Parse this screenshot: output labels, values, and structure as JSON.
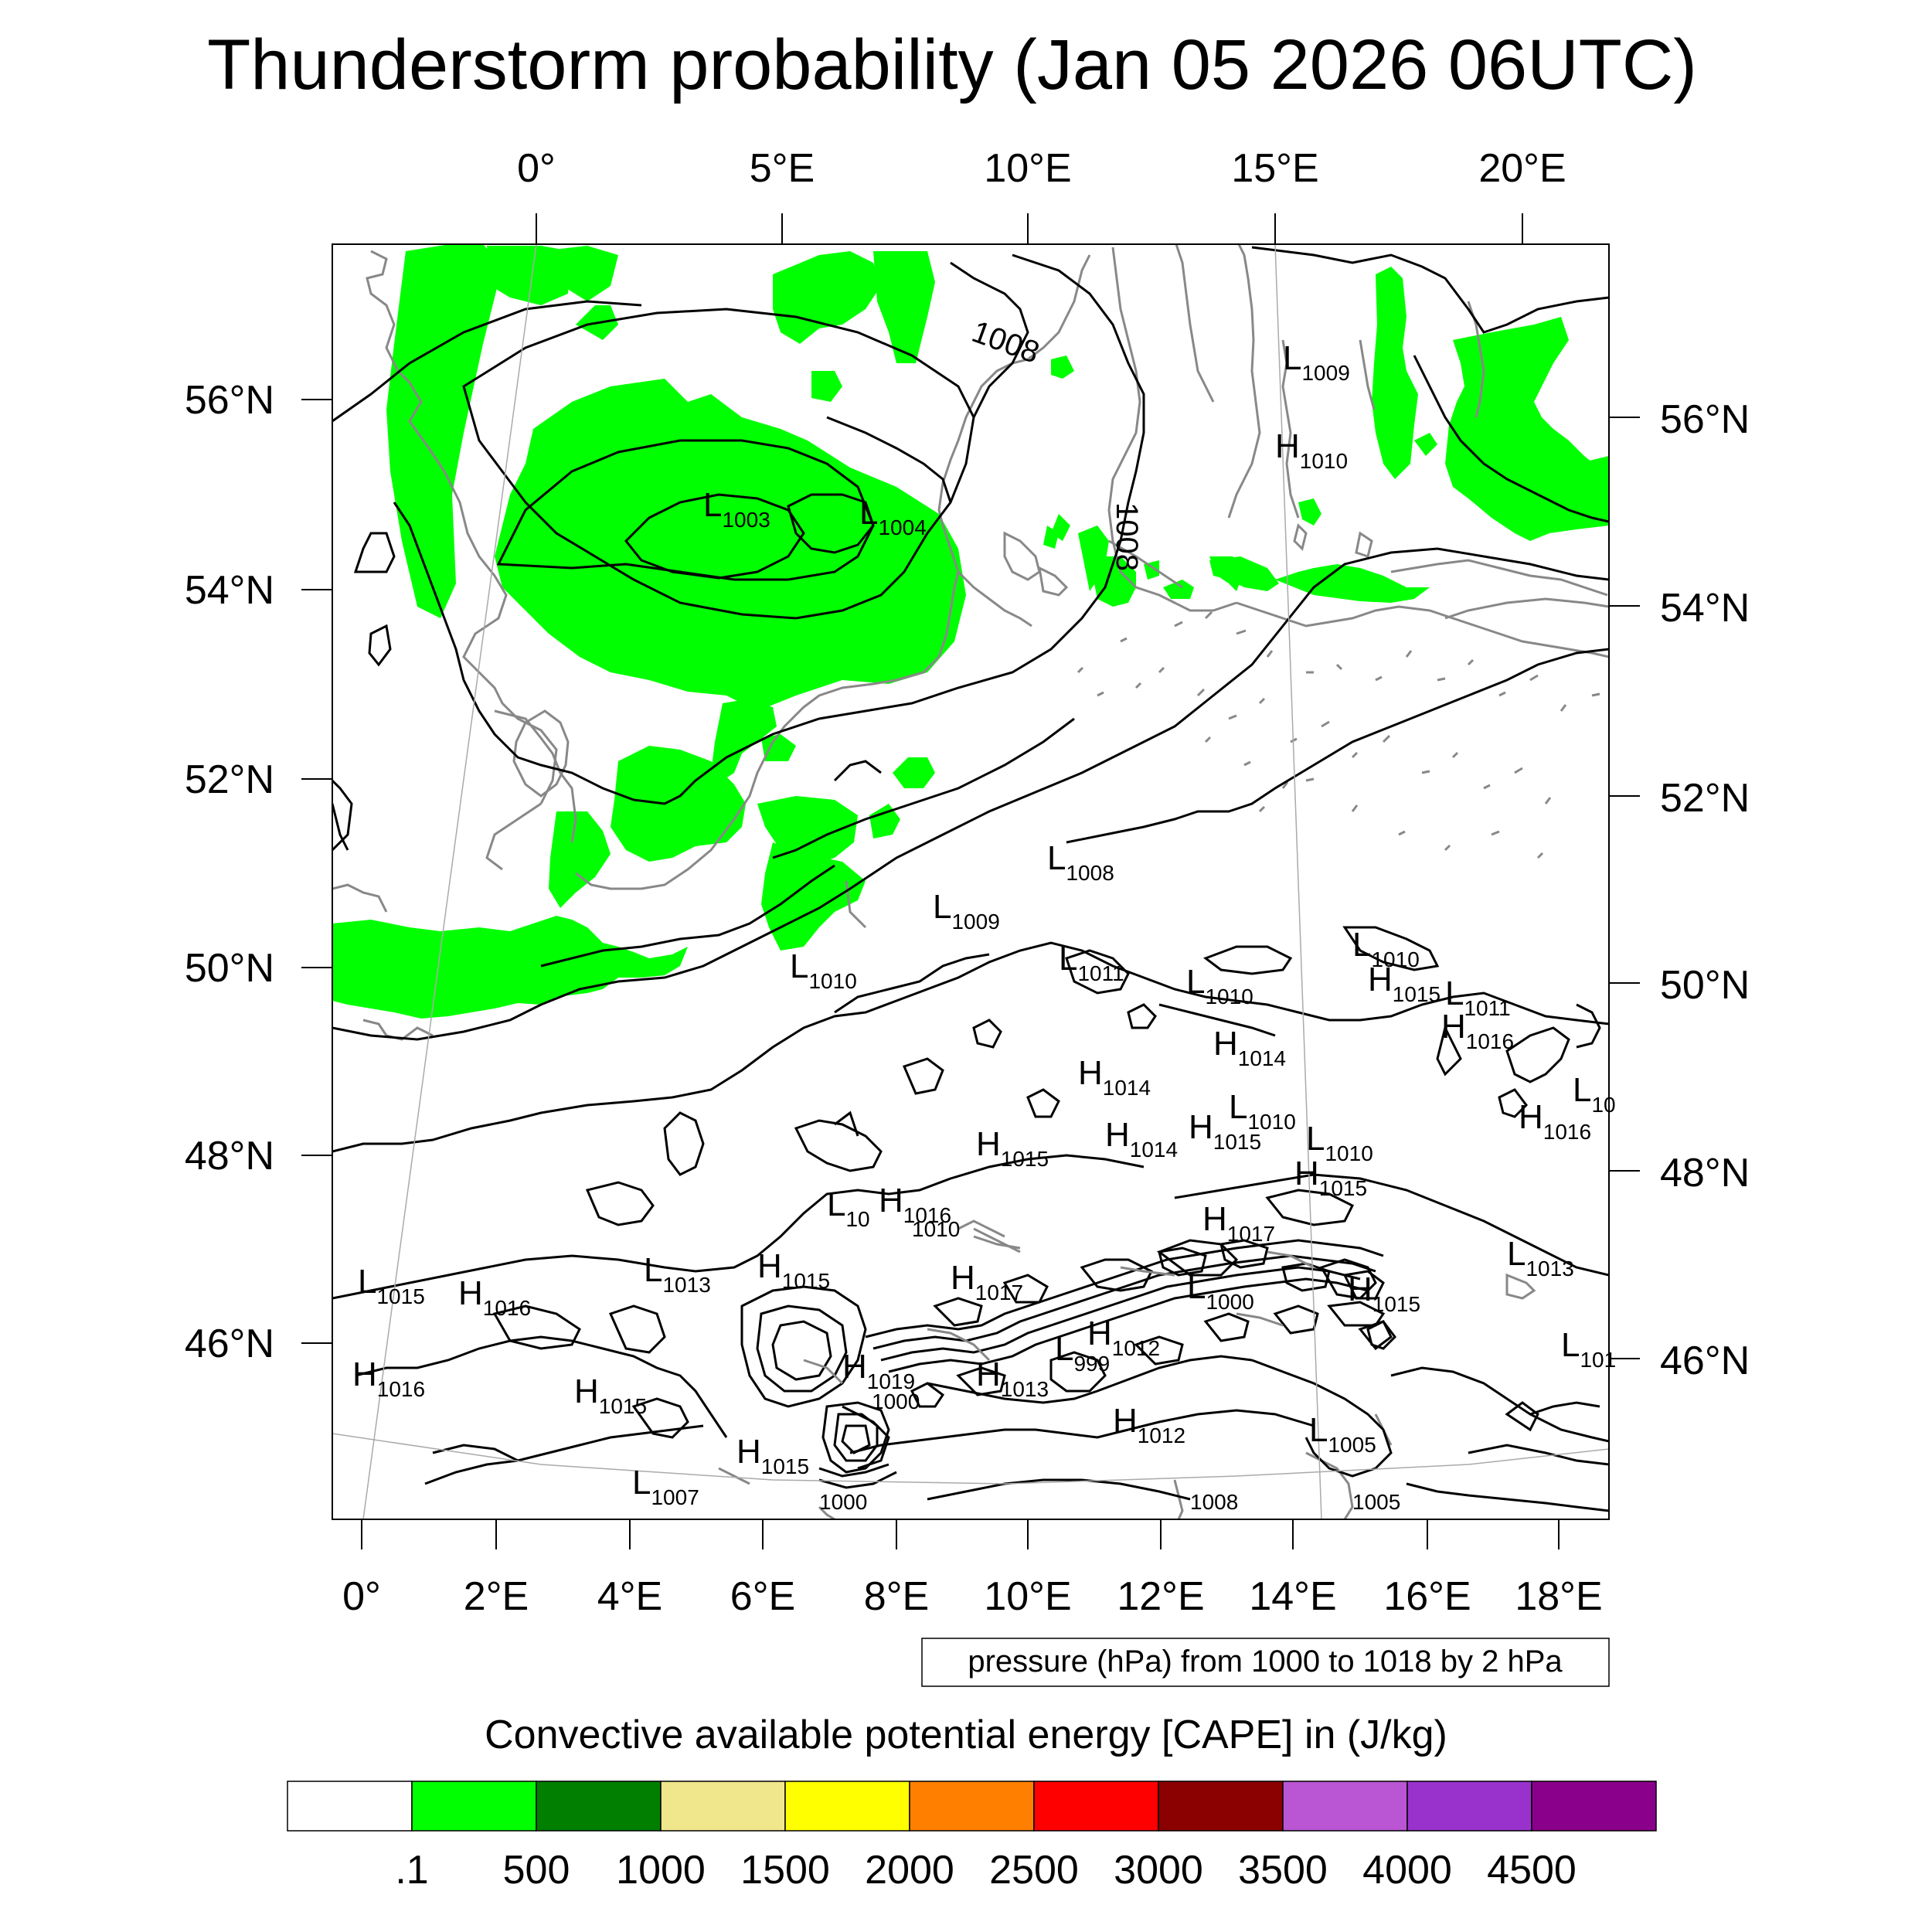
{
  "title": "Thunderstorm probability (Jan 05 2026 06UTC)",
  "top_lon_labels": [
    "0°",
    "5°E",
    "10°E",
    "15°E",
    "20°E"
  ],
  "bottom_lon_labels": [
    "0°",
    "2°E",
    "4°E",
    "6°E",
    "8°E",
    "10°E",
    "12°E",
    "14°E",
    "16°E",
    "18°E"
  ],
  "left_lat_labels": [
    "56°N",
    "54°N",
    "52°N",
    "50°N",
    "48°N",
    "46°N"
  ],
  "right_lat_labels": [
    "56°N",
    "54°N",
    "52°N",
    "50°N",
    "48°N",
    "46°N"
  ],
  "isobar_labels": [
    "1008",
    "1008"
  ],
  "pressure_centers": [
    {
      "type": "L",
      "value": "1003"
    },
    {
      "type": "L",
      "value": "1004"
    },
    {
      "type": "L",
      "value": "1009"
    },
    {
      "type": "H",
      "value": "1010"
    },
    {
      "type": "L",
      "value": "1008"
    },
    {
      "type": "L",
      "value": "1009"
    },
    {
      "type": "L",
      "value": "1010"
    },
    {
      "type": "L",
      "value": "1011"
    },
    {
      "type": "L",
      "value": "1010"
    },
    {
      "type": "L",
      "value": "1010"
    },
    {
      "type": "H",
      "value": "1015"
    },
    {
      "type": "L",
      "value": "1011"
    },
    {
      "type": "H",
      "value": "1016"
    },
    {
      "type": "H",
      "value": "1014"
    },
    {
      "type": "H",
      "value": "1014"
    },
    {
      "type": "L",
      "value": "1010"
    },
    {
      "type": "H",
      "value": "1015"
    },
    {
      "type": "L",
      "value": "1010"
    },
    {
      "type": "H",
      "value": "1015"
    },
    {
      "type": "H",
      "value": "1014"
    },
    {
      "type": "H",
      "value": "1015"
    },
    {
      "type": "H",
      "value": "1016"
    },
    {
      "type": "L",
      "value": "10"
    },
    {
      "type": "H",
      "value": "1016"
    },
    {
      "type": "L",
      "value": "1010"
    },
    {
      "type": "H",
      "value": "1017"
    },
    {
      "type": "L",
      "value": "1013"
    },
    {
      "type": "H",
      "value": "1015"
    },
    {
      "type": "H",
      "value": "1017"
    },
    {
      "type": "L",
      "value": "1000"
    },
    {
      "type": "H",
      "value": "1015"
    },
    {
      "type": "L",
      "value": "1013"
    },
    {
      "type": "L",
      "value": "1015"
    },
    {
      "type": "H",
      "value": "1016"
    },
    {
      "type": "H",
      "value": "1016"
    },
    {
      "type": "H",
      "value": "1015"
    },
    {
      "type": "H",
      "value": "1019"
    },
    {
      "type": "L",
      "value": "1000"
    },
    {
      "type": "H",
      "value": "1013"
    },
    {
      "type": "L",
      "value": "999"
    },
    {
      "type": "H",
      "value": "1012"
    },
    {
      "type": "H",
      "value": "1012"
    },
    {
      "type": "L",
      "value": "1005"
    },
    {
      "type": "H",
      "value": "1015"
    },
    {
      "type": "L",
      "value": "1007"
    },
    {
      "type": "L",
      "value": "1000"
    },
    {
      "type": "L",
      "value": "1008"
    },
    {
      "type": "L",
      "value": "1005"
    },
    {
      "type": "L",
      "value": "10"
    },
    {
      "type": "L",
      "value": "101"
    }
  ],
  "pressure_legend": "pressure (hPa) from 1000 to 1018 by 2 hPa",
  "colorbar": {
    "title": "Convective available potential energy [CAPE] in (J/kg)",
    "colors": [
      "#ffffff",
      "#00ff00",
      "#007f00",
      "#f0e68c",
      "#ffff00",
      "#ff8000",
      "#ff0000",
      "#8b0000",
      "#ba55d3",
      "#9932cc",
      "#8b008b"
    ],
    "tick_labels": [
      ".1",
      "500",
      "1000",
      "1500",
      "2000",
      "2500",
      "3000",
      "3500",
      "4000",
      "4500"
    ]
  }
}
